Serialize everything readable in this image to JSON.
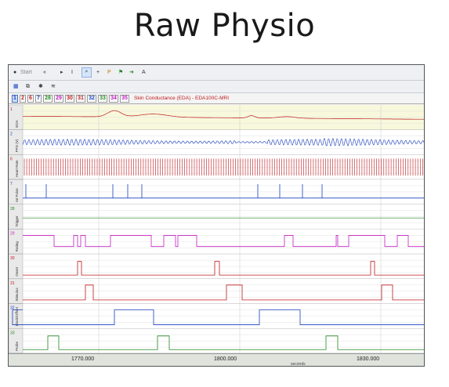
{
  "page_title": "Raw Physio",
  "toolbar": {
    "start_label": "Start",
    "rewind_icon": "rewind-icon",
    "cursor_icon": "pointer-cursor-icon",
    "ibeam_icon": "ibeam-cursor-icon",
    "zoom_icon": "zoom-icon",
    "crosshair_icon": "crosshair-icon",
    "marker_icon": "marker-icon",
    "flag_icon": "flag-icon",
    "arrow_icon": "arrow-icon",
    "annotate_icon": "annotate-icon"
  },
  "toolbar2": {
    "icons": [
      "grid-icon",
      "copy-icon",
      "settings-icon",
      "waveform-icon"
    ]
  },
  "tabs": [
    {
      "label": "1",
      "color": "#1a40c0",
      "active": true
    },
    {
      "label": "2",
      "color": "#c0191e"
    },
    {
      "label": "6",
      "color": "#c0191e"
    },
    {
      "label": "7",
      "color": "#1a40c0"
    },
    {
      "label": "28",
      "color": "#228822"
    },
    {
      "label": "29",
      "color": "#c020c0"
    },
    {
      "label": "30",
      "color": "#c0191e"
    },
    {
      "label": "31",
      "color": "#c0191e"
    },
    {
      "label": "32",
      "color": "#1a40c0"
    },
    {
      "label": "33",
      "color": "#228822"
    },
    {
      "label": "34",
      "color": "#c020c0"
    },
    {
      "label": "35",
      "color": "#c020c0"
    }
  ],
  "active_channel_title": "Skin Conductance (EDA) - EDA100C-MRI",
  "channels": [
    {
      "num": "1",
      "label": "EDA",
      "color": "#c0191e",
      "bg": "#f7f8dc"
    },
    {
      "num": "2",
      "label": "PPG (V)",
      "color": "#1a40c0",
      "bg": "#ffffff"
    },
    {
      "num": "6",
      "label": "Heart Rate",
      "color": "#c0191e",
      "bg": "#ffffff"
    },
    {
      "num": "7",
      "label": "Int Pulse",
      "color": "#1a40c0",
      "bg": "#ffffff"
    },
    {
      "num": "28",
      "label": "Trigger",
      "color": "#228822",
      "bg": "#ffffff"
    },
    {
      "num": "29",
      "label": "Rating",
      "color": "#c020c0",
      "bg": "#ffffff"
    },
    {
      "num": "30",
      "label": "Onset",
      "color": "#c0191e",
      "bg": "#ffffff"
    },
    {
      "num": "31",
      "label": "Stimulus",
      "color": "#c0191e",
      "bg": "#ffffff"
    },
    {
      "num": "32",
      "label": "Block/Offset",
      "color": "#1a40c0",
      "bg": "#ffffff"
    },
    {
      "num": "33",
      "label": "Probe",
      "color": "#228822",
      "bg": "#ffffff"
    }
  ],
  "x_axis": {
    "ticks": [
      "1770.000",
      "1800.000",
      "1830.000"
    ],
    "unit": "seconds"
  }
}
